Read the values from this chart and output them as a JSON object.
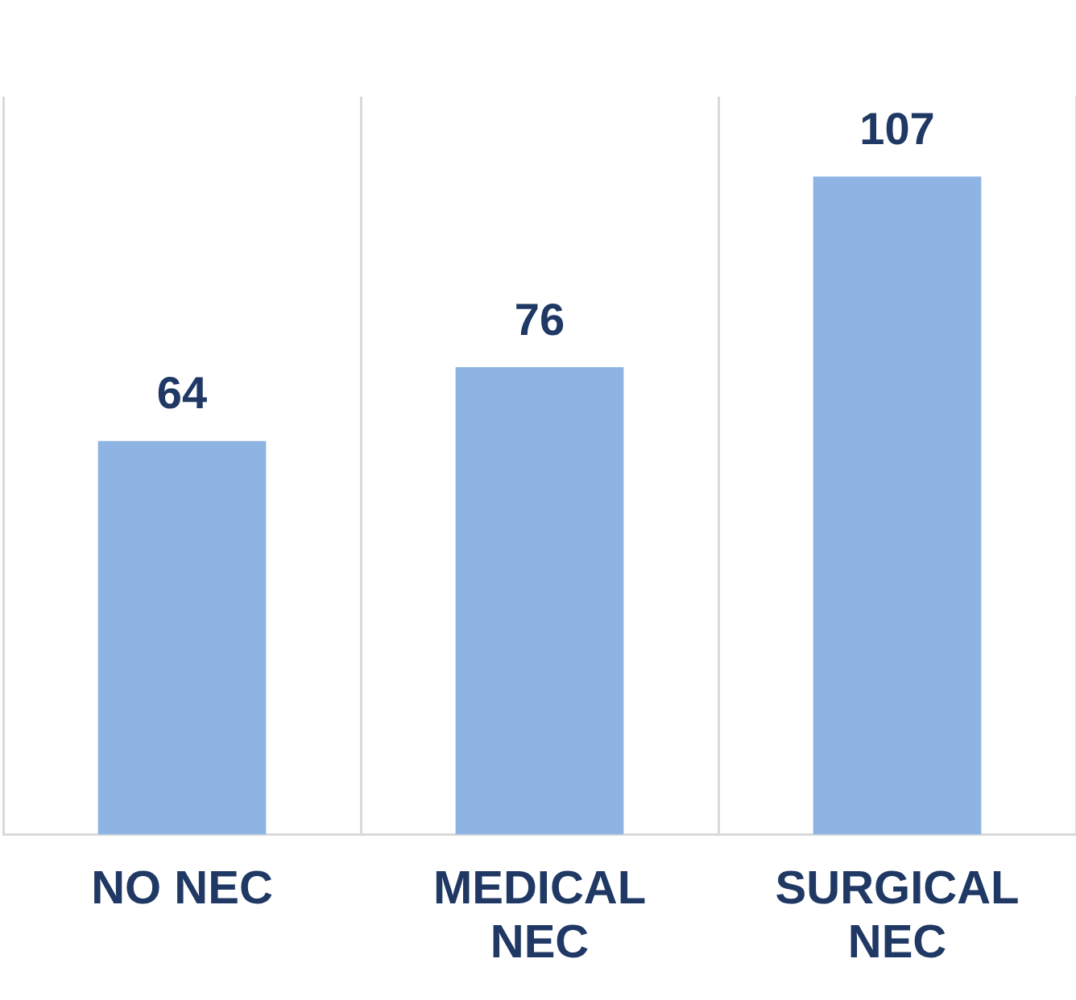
{
  "chart_data": {
    "type": "bar",
    "categories": [
      "NO NEC",
      "MEDICAL NEC",
      "SURGICAL NEC"
    ],
    "values": [
      64,
      76,
      107
    ],
    "color": "#8eb4e3",
    "data_labels": true,
    "grid": "x",
    "legend": false,
    "tick_labels": "x"
  }
}
